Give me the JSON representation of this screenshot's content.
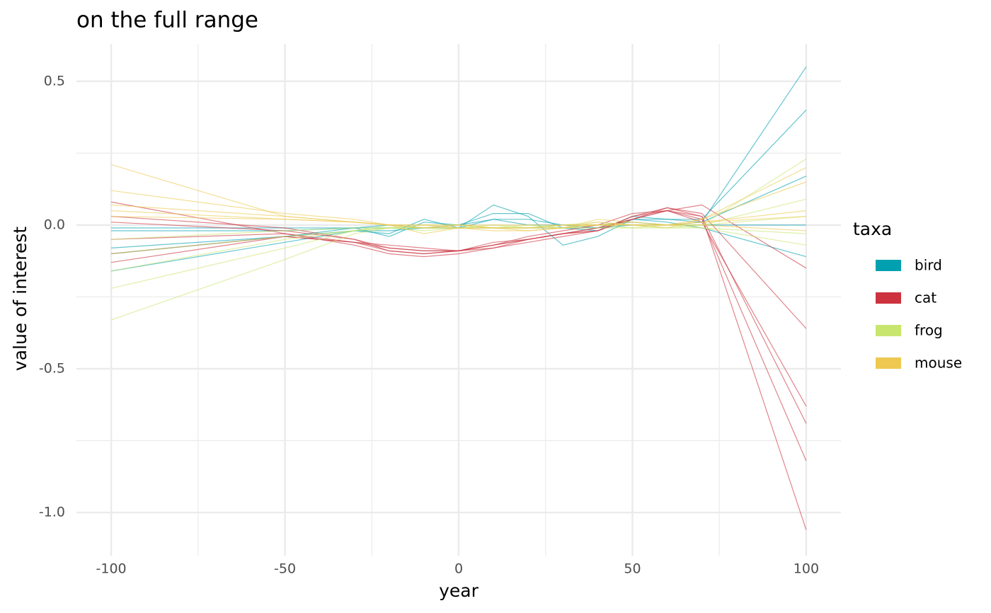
{
  "chart_data": {
    "type": "line",
    "title": "on the full range",
    "x_label": "year",
    "y_label": "value of interest",
    "legend_title": "taxa",
    "legend_position": "right",
    "grid": true,
    "x": [
      -100,
      -50,
      -30,
      -20,
      -10,
      0,
      10,
      20,
      30,
      40,
      50,
      60,
      70,
      100
    ],
    "xlim": [
      -110,
      110
    ],
    "xticks": [
      -100,
      -50,
      0,
      50,
      100
    ],
    "xminor": [
      -75,
      -25,
      25,
      75
    ],
    "ylim": [
      -1.15,
      0.63
    ],
    "yticks": [
      {
        "value": -1,
        "label": "-1.0"
      },
      {
        "value": -0.5,
        "label": "-0.5"
      },
      {
        "value": 0,
        "label": "0.0"
      },
      {
        "value": 0.5,
        "label": "0.5"
      }
    ],
    "yminor": [
      -0.75,
      -0.25,
      0.25
    ],
    "series": [
      {
        "name": "bird",
        "color": "#00a0b0",
        "lines": [
          [
            -0.16,
            -0.06,
            -0.02,
            -0.03,
            0.02,
            -0.01,
            0.07,
            0.03,
            -0.07,
            -0.04,
            0.02,
            0.02,
            0.01,
            0.55
          ],
          [
            -0.08,
            -0.04,
            -0.01,
            -0.04,
            0.01,
            0.0,
            0.04,
            0.04,
            -0.01,
            -0.02,
            0.03,
            0.02,
            0.02,
            0.4
          ],
          [
            -0.02,
            -0.02,
            -0.01,
            0.0,
            -0.01,
            0.0,
            0.02,
            0.02,
            0.0,
            0.0,
            0.01,
            0.0,
            0.01,
            0.17
          ],
          [
            -0.01,
            -0.01,
            -0.01,
            -0.01,
            -0.01,
            -0.01,
            -0.01,
            -0.01,
            -0.01,
            -0.01,
            0.0,
            0.0,
            0.0,
            0.0
          ],
          [
            -0.1,
            -0.04,
            -0.02,
            -0.02,
            -0.01,
            -0.01,
            0.02,
            0.0,
            0.0,
            -0.01,
            0.02,
            0.01,
            -0.01,
            -0.11
          ]
        ]
      },
      {
        "name": "cat",
        "color": "#cc333f",
        "lines": [
          [
            0.08,
            -0.03,
            -0.07,
            -0.1,
            -0.11,
            -0.1,
            -0.08,
            -0.05,
            -0.03,
            -0.02,
            0.03,
            0.06,
            0.03,
            -1.06
          ],
          [
            -0.13,
            -0.04,
            -0.06,
            -0.09,
            -0.1,
            -0.09,
            -0.07,
            -0.05,
            -0.03,
            -0.01,
            0.02,
            0.05,
            0.02,
            -0.82
          ],
          [
            0.01,
            -0.02,
            -0.05,
            -0.08,
            -0.09,
            -0.09,
            -0.07,
            -0.04,
            -0.02,
            0.0,
            0.04,
            0.05,
            0.01,
            -0.63
          ],
          [
            -0.05,
            -0.03,
            -0.06,
            -0.07,
            -0.08,
            -0.09,
            -0.06,
            -0.05,
            -0.03,
            -0.02,
            0.02,
            0.06,
            0.04,
            -0.36
          ],
          [
            0.03,
            -0.01,
            -0.05,
            -0.09,
            -0.1,
            -0.09,
            -0.08,
            -0.06,
            -0.04,
            -0.02,
            0.03,
            0.05,
            0.07,
            -0.15
          ],
          [
            -0.1,
            -0.04,
            -0.06,
            -0.08,
            -0.09,
            -0.09,
            -0.07,
            -0.05,
            -0.03,
            -0.01,
            0.02,
            0.05,
            0.03,
            -0.69
          ]
        ]
      },
      {
        "name": "frog",
        "color": "#c8e66e",
        "lines": [
          [
            -0.33,
            -0.12,
            -0.03,
            -0.01,
            -0.01,
            0.0,
            -0.01,
            -0.01,
            0.0,
            0.0,
            0.0,
            0.0,
            0.0,
            0.23
          ],
          [
            -0.22,
            -0.08,
            -0.02,
            -0.01,
            -0.02,
            -0.01,
            0.0,
            -0.01,
            0.0,
            0.0,
            -0.01,
            0.0,
            -0.01,
            -0.07
          ],
          [
            -0.16,
            -0.05,
            -0.02,
            0.0,
            -0.01,
            -0.01,
            -0.01,
            0.0,
            -0.01,
            0.0,
            0.0,
            -0.01,
            0.0,
            0.09
          ],
          [
            -0.05,
            -0.02,
            -0.01,
            -0.01,
            -0.01,
            -0.01,
            -0.01,
            -0.01,
            -0.01,
            -0.01,
            -0.01,
            -0.01,
            -0.01,
            -0.03
          ],
          [
            -0.1,
            -0.04,
            -0.02,
            -0.01,
            0.0,
            0.0,
            -0.01,
            -0.01,
            0.0,
            0.01,
            0.0,
            0.0,
            0.0,
            0.03
          ]
        ]
      },
      {
        "name": "mouse",
        "color": "#edc951",
        "lines": [
          [
            0.21,
            0.03,
            0.01,
            0.0,
            -0.03,
            -0.01,
            -0.01,
            -0.02,
            -0.01,
            0.02,
            0.01,
            0.0,
            0.02,
            0.2
          ],
          [
            0.12,
            0.04,
            0.02,
            0.0,
            -0.01,
            -0.01,
            -0.02,
            -0.02,
            -0.01,
            0.01,
            0.0,
            -0.01,
            0.02,
            0.15
          ],
          [
            0.07,
            0.03,
            0.01,
            0.0,
            0.0,
            -0.01,
            -0.01,
            -0.01,
            0.0,
            0.0,
            0.01,
            0.0,
            0.01,
            0.05
          ],
          [
            0.05,
            0.02,
            0.01,
            0.0,
            -0.01,
            0.0,
            -0.01,
            -0.01,
            -0.01,
            0.0,
            0.0,
            0.0,
            0.0,
            -0.02
          ],
          [
            0.03,
            0.02,
            0.01,
            0.0,
            0.0,
            0.0,
            0.0,
            0.0,
            0.0,
            0.0,
            0.0,
            0.0,
            0.01,
            0.03
          ]
        ]
      }
    ]
  }
}
